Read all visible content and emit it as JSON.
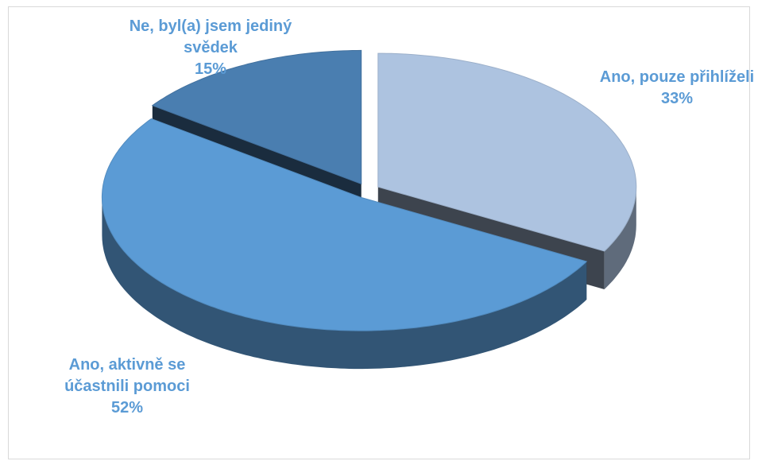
{
  "chart_data": {
    "type": "pie3d",
    "categories": [
      "Ano, pouze přihlíželi",
      "Ano, aktivně se účastnili pomoci",
      "Ne, byl(a) jsem jediný svědek"
    ],
    "values": [
      33,
      52,
      15
    ],
    "value_labels": [
      "33%",
      "52%",
      "15%"
    ],
    "colors": [
      "#adc3e0",
      "#5b9bd5",
      "#4a7eb0"
    ]
  }
}
